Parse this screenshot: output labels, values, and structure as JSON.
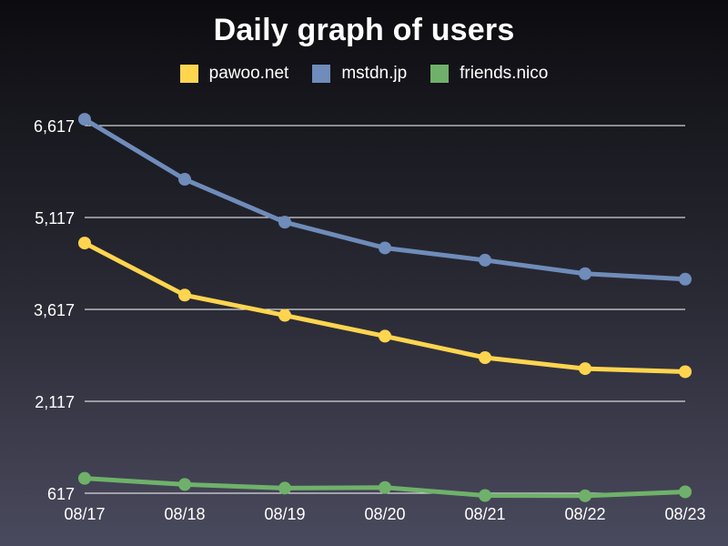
{
  "chart_data": {
    "type": "line",
    "title": "Daily graph of users",
    "xlabel": "",
    "ylabel": "",
    "x": [
      "08/17",
      "08/18",
      "08/19",
      "08/20",
      "08/21",
      "08/22",
      "08/23"
    ],
    "ylim": [
      617,
      6617
    ],
    "yticks": [
      617,
      2117,
      3617,
      5117,
      6617
    ],
    "ytick_labels": [
      "617",
      "2,117",
      "3,617",
      "5,117",
      "6,617"
    ],
    "grid": true,
    "legend_position": "top-center",
    "series": [
      {
        "name": "pawoo.net",
        "color": "#ffd54f",
        "values": [
          4700,
          3850,
          3520,
          3180,
          2830,
          2650,
          2600
        ]
      },
      {
        "name": "mstdn.jp",
        "color": "#6f8cba",
        "values": [
          6720,
          5740,
          5040,
          4620,
          4420,
          4200,
          4110
        ]
      },
      {
        "name": "friends.nico",
        "color": "#6fb16a",
        "values": [
          860,
          760,
          700,
          710,
          580,
          575,
          640
        ]
      }
    ]
  }
}
